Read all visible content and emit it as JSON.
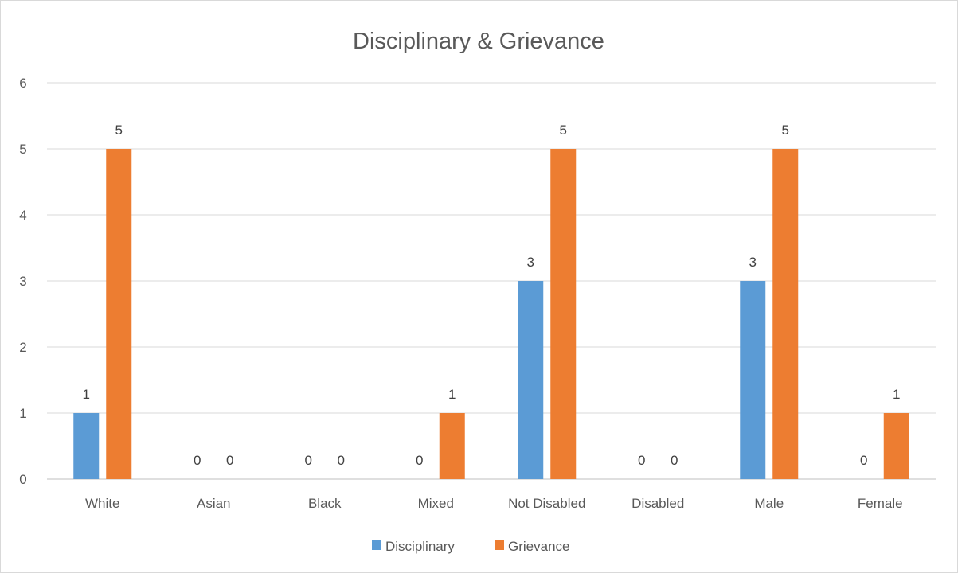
{
  "chart_data": {
    "type": "bar",
    "title": "Disciplinary & Grievance",
    "categories": [
      "White",
      "Asian",
      "Black",
      "Mixed",
      "Not Disabled",
      "Disabled",
      "Male",
      "Female"
    ],
    "series": [
      {
        "name": "Disciplinary",
        "values": [
          1,
          0,
          0,
          0,
          3,
          0,
          3,
          0
        ],
        "color": "#5b9bd5"
      },
      {
        "name": "Grievance",
        "values": [
          5,
          0,
          0,
          1,
          5,
          0,
          5,
          1
        ],
        "color": "#ed7d31"
      }
    ],
    "xlabel": "",
    "ylabel": "",
    "ylim": [
      0,
      6
    ],
    "yticks": [
      0,
      1,
      2,
      3,
      4,
      5,
      6
    ],
    "grid": true,
    "data_labels": true,
    "legend": "bottom"
  }
}
